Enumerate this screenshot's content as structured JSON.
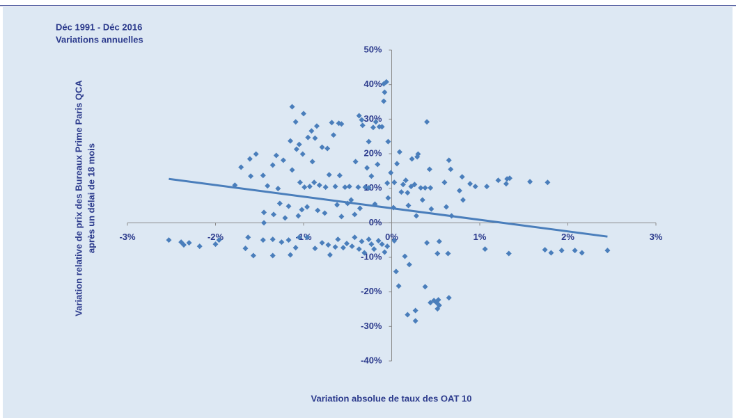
{
  "chart_data": {
    "type": "scatter",
    "annotations": [
      "Déc 1991 - Déc 2016",
      "Variations annuelles"
    ],
    "y_label": [
      "Variation relative de prix des Bureaux Prime Paris QCA",
      "après un délai de 18 mois"
    ],
    "x_label": "Variation absolue de taux des OAT 10",
    "color": "#4a7ebb",
    "xlim": [
      -3,
      3
    ],
    "ylim": [
      -40,
      50
    ],
    "xticks": [
      {
        "value": -3,
        "label": "-3%"
      },
      {
        "value": -2,
        "label": "-2%"
      },
      {
        "value": -1,
        "label": "-1%"
      },
      {
        "value": 0,
        "label": "0%"
      },
      {
        "value": 1,
        "label": "1%"
      },
      {
        "value": 2,
        "label": "2%"
      },
      {
        "value": 3,
        "label": "3%"
      }
    ],
    "yticks": [
      {
        "value": -40,
        "label": "-40%"
      },
      {
        "value": -30,
        "label": "-30%"
      },
      {
        "value": -20,
        "label": "-20%"
      },
      {
        "value": -10,
        "label": "-10%"
      },
      {
        "value": 0,
        "label": "0%"
      },
      {
        "value": 10,
        "label": "10%"
      },
      {
        "value": 20,
        "label": "20%"
      },
      {
        "value": 30,
        "label": "30%"
      },
      {
        "value": 40,
        "label": "40%"
      },
      {
        "value": 50,
        "label": "50%"
      }
    ],
    "x": [
      -2.53,
      -2.39,
      -2.36,
      -2.3,
      -2.18,
      -2.0,
      -1.96,
      -1.66,
      -1.63,
      -1.57,
      -1.46,
      -1.35,
      -1.35,
      -1.25,
      -1.17,
      -1.15,
      -1.05,
      -1.09,
      -0.96,
      -0.87,
      -0.79,
      -0.72,
      -0.7,
      -0.64,
      -0.61,
      -0.55,
      -0.51,
      -0.45,
      -0.42,
      -0.37,
      -0.34,
      -0.31,
      -0.26,
      -0.23,
      -0.2,
      -0.15,
      -0.11,
      -0.08,
      -0.05,
      0.03,
      0.05,
      0.08,
      0.15,
      0.18,
      0.2,
      0.27,
      0.27,
      0.38,
      0.4,
      0.44,
      0.48,
      0.51,
      0.53,
      0.52,
      0.54,
      0.54,
      0.52,
      0.64,
      0.65,
      1.06,
      1.33,
      1.74,
      1.81,
      1.93,
      2.08,
      2.16,
      2.45,
      -1.78,
      -1.71,
      -1.61,
      -1.6,
      -1.54,
      -1.46,
      -1.45,
      -1.45,
      -1.41,
      -1.35,
      -1.34,
      -1.31,
      -1.29,
      -1.27,
      -1.23,
      -1.21,
      -1.17,
      -1.15,
      -1.13,
      -1.13,
      -1.09,
      -1.08,
      -1.06,
      -1.05,
      -1.04,
      -1.02,
      -1.01,
      -1.0,
      -0.99,
      -0.96,
      -0.95,
      -0.93,
      -0.91,
      -0.9,
      -0.88,
      -0.87,
      -0.85,
      -0.84,
      -0.82,
      -0.79,
      -0.76,
      -0.75,
      -0.73,
      -0.71,
      -0.68,
      -0.66,
      -0.64,
      -0.62,
      -0.6,
      -0.57,
      -0.59,
      -0.57,
      -0.53,
      -0.5,
      -0.48,
      -0.46,
      -0.42,
      -0.41,
      -0.38,
      -0.36,
      -0.37,
      -0.34,
      -0.33,
      -0.3,
      -0.28,
      -0.26,
      -0.26,
      -0.23,
      -0.21,
      -0.19,
      -0.18,
      -0.16,
      -0.14,
      -0.11,
      -0.09,
      -0.09,
      -0.06,
      -0.08,
      -0.05,
      -0.04,
      -0.04,
      -0.01,
      0.02,
      0.03,
      0.06,
      0.09,
      0.11,
      0.13,
      0.16,
      0.18,
      0.19,
      0.22,
      0.23,
      0.26,
      0.28,
      0.29,
      0.3,
      0.33,
      0.35,
      0.38,
      0.4,
      0.43,
      0.44,
      0.45,
      0.6,
      0.62,
      0.65,
      0.67,
      0.68,
      0.77,
      0.8,
      0.81,
      0.89,
      0.95,
      1.08,
      1.21,
      1.3,
      1.31,
      1.34,
      1.57,
      1.77
    ],
    "values": [
      -5.0,
      -5.6,
      -6.4,
      -5.8,
      -6.8,
      -6.2,
      -5.0,
      -7.4,
      -4.2,
      -9.5,
      -5.0,
      -4.8,
      -9.5,
      -5.6,
      -5.0,
      -9.3,
      -4.2,
      -7.2,
      -4.2,
      -7.4,
      -5.8,
      -6.4,
      -9.3,
      -7.0,
      -4.8,
      -7.2,
      -6.0,
      -6.8,
      -4.2,
      -7.6,
      -5.4,
      -8.7,
      -4.8,
      -6.2,
      -7.6,
      -5.2,
      -6.2,
      -8.5,
      -6.8,
      -5.2,
      -14.1,
      -18.3,
      -9.7,
      -26.6,
      -12.1,
      -25.4,
      -28.4,
      -18.5,
      -5.8,
      -23.1,
      -22.5,
      -23.1,
      -22.3,
      -24.9,
      -23.9,
      -5.4,
      -8.9,
      -8.9,
      -21.7,
      -7.6,
      -8.9,
      -7.8,
      -8.7,
      -8.0,
      -8.0,
      -8.7,
      -8.0,
      10.9,
      16.1,
      18.5,
      13.5,
      19.9,
      13.7,
      3.0,
      0.0,
      10.7,
      16.7,
      2.4,
      19.5,
      9.9,
      5.6,
      18.1,
      1.4,
      4.8,
      23.7,
      33.6,
      15.3,
      29.2,
      21.3,
      2.0,
      22.7,
      11.7,
      3.8,
      19.9,
      31.6,
      10.3,
      4.6,
      24.7,
      10.5,
      26.6,
      17.7,
      11.7,
      24.5,
      28.0,
      3.6,
      10.9,
      21.9,
      2.8,
      10.3,
      21.5,
      13.9,
      29.0,
      25.4,
      10.5,
      5.2,
      28.8,
      28.6,
      13.7,
      1.8,
      10.3,
      5.6,
      10.5,
      6.6,
      2.4,
      17.7,
      10.3,
      4.2,
      31.0,
      29.8,
      28.2,
      10.3,
      15.9,
      10.1,
      23.5,
      13.5,
      27.6,
      5.4,
      29.2,
      16.9,
      27.8,
      27.8,
      35.2,
      40.2,
      40.8,
      37.8,
      11.5,
      7.2,
      23.5,
      14.5,
      4.4,
      11.7,
      17.1,
      20.5,
      8.9,
      11.1,
      12.3,
      8.7,
      5.0,
      10.5,
      18.5,
      11.1,
      2.0,
      19.1,
      19.9,
      10.1,
      6.6,
      10.1,
      29.2,
      15.5,
      10.1,
      4.0,
      11.7,
      4.6,
      18.1,
      15.5,
      2.0,
      9.3,
      13.3,
      6.6,
      11.3,
      10.5,
      10.5,
      12.3,
      11.3,
      12.7,
      12.9,
      11.9,
      11.7
    ],
    "trendline": {
      "x": [
        -2.53,
        2.45
      ],
      "values": [
        12.7,
        -4.0
      ],
      "color": "#4a7ebb"
    }
  }
}
